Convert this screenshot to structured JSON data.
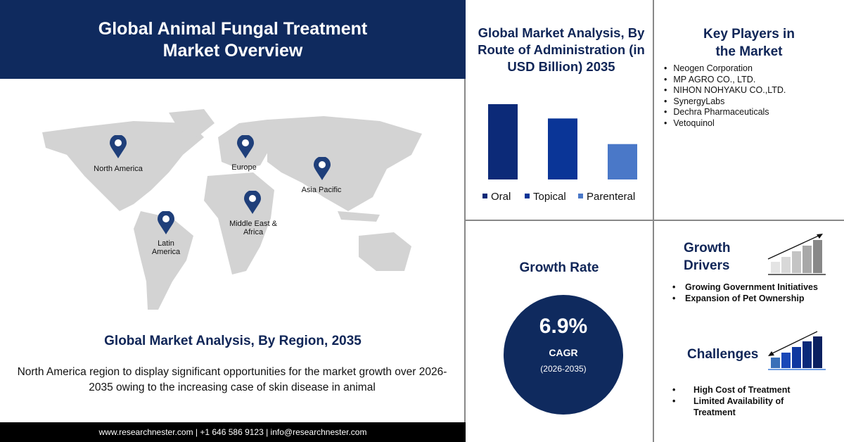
{
  "header": {
    "title_line1": "Global Animal Fungal Treatment",
    "title_line2": "Market Overview"
  },
  "map": {
    "regions": [
      {
        "label": "North America"
      },
      {
        "label": "Europe"
      },
      {
        "label": "Asia Pacific"
      },
      {
        "label": "Middle East & Africa"
      },
      {
        "label": "Latin America"
      }
    ],
    "land_color": "#d3d3d3",
    "pin_color": "#1f3f7a"
  },
  "region_section": {
    "title": "Global Market Analysis, By Region, 2035",
    "description": "North America region to display significant opportunities for the market growth over 2026-2035 owing to the increasing case of skin disease in animal"
  },
  "footer": {
    "text": "www.researchnester.com | +1 646 586 9123 | info@researchnester.com"
  },
  "chart_data": {
    "type": "bar",
    "title": "Global Market Analysis, By Route of Administration (in USD Billion) 2035",
    "categories": [
      "Oral",
      "Topical",
      "Parenteral"
    ],
    "values": [
      1.0,
      0.81,
      0.47
    ],
    "colors": [
      "#0c2a78",
      "#0a3597",
      "#4a78c8"
    ],
    "legend": "bottom",
    "grid": false,
    "axes_shown": false
  },
  "key_players": {
    "title": "Key Players in the Market",
    "items": [
      "Neogen Corporation",
      "MP AGRO CO., LTD.",
      "NIHON NOHYAKU CO.,LTD.",
      "SynergyLabs",
      "Dechra Pharmaceuticals",
      "Vetoquinol"
    ]
  },
  "growth": {
    "title": "Growth Rate",
    "value": "6.9%",
    "label": "CAGR",
    "period": "(2026-2035)"
  },
  "drivers": {
    "title_line1": "Growth",
    "title_line2": "Drivers",
    "items": [
      "Growing Government Initiatives",
      "Expansion of Pet Ownership"
    ]
  },
  "challenges": {
    "title": "Challenges",
    "items": [
      "High Cost of Treatment",
      "Limited Availability of Treatment"
    ]
  }
}
